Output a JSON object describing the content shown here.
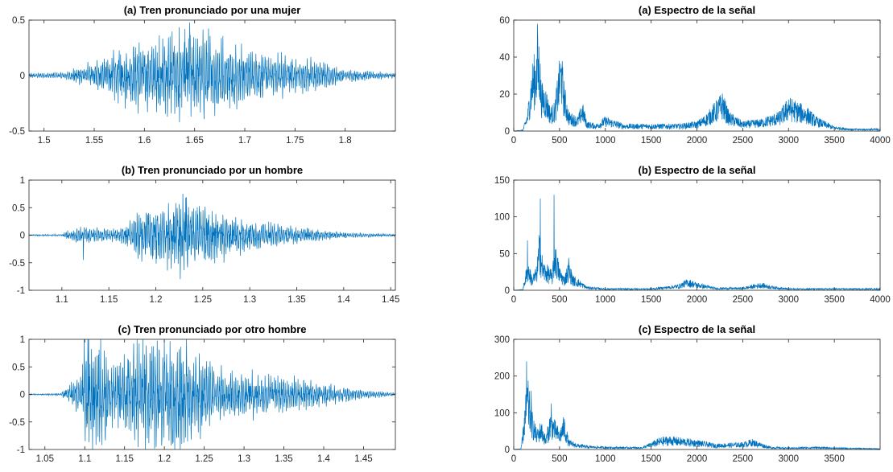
{
  "figure": {
    "line_color": "#0072bd",
    "axis_color": "#262626",
    "background": "#ffffff"
  },
  "chart_data": [
    {
      "id": "wave-a",
      "type": "line",
      "title": "(a) Tren pronunciado por una mujer",
      "xlim": [
        1.485,
        1.85
      ],
      "ylim": [
        -0.5,
        0.5
      ],
      "xticks": [
        1.5,
        1.55,
        1.6,
        1.65,
        1.7,
        1.75,
        1.8
      ],
      "xtick_labels": [
        "1.5",
        "1.55",
        "1.6",
        "1.65",
        "1.7",
        "1.75",
        "1.8"
      ],
      "yticks": [
        -0.5,
        0,
        0.5
      ],
      "ytick_labels": [
        "-0.5",
        "0",
        "0.5"
      ],
      "signal": {
        "kind": "waveform",
        "envelope_x": [
          1.485,
          1.52,
          1.55,
          1.58,
          1.6,
          1.63,
          1.65,
          1.68,
          1.7,
          1.73,
          1.76,
          1.8,
          1.85
        ],
        "envelope_y": [
          0.02,
          0.03,
          0.12,
          0.25,
          0.3,
          0.38,
          0.4,
          0.32,
          0.22,
          0.18,
          0.15,
          0.05,
          0.02
        ],
        "peaks": [
          {
            "x": 1.645,
            "y": 0.48
          },
          {
            "x": 1.635,
            "y": -0.42
          }
        ]
      }
    },
    {
      "id": "spec-a",
      "type": "line",
      "title": "(a) Espectro de la señal",
      "xlim": [
        0,
        4000
      ],
      "ylim": [
        0,
        60
      ],
      "xticks": [
        0,
        500,
        1000,
        1500,
        2000,
        2500,
        3000,
        3500,
        4000
      ],
      "xtick_labels": [
        "0",
        "500",
        "1000",
        "1500",
        "2000",
        "2500",
        "3000",
        "3500",
        "4000"
      ],
      "yticks": [
        0,
        20,
        40,
        60
      ],
      "ytick_labels": [
        "0",
        "20",
        "40",
        "60"
      ],
      "signal": {
        "kind": "spectrum",
        "x": [
          0,
          100,
          150,
          200,
          250,
          280,
          300,
          350,
          400,
          450,
          500,
          520,
          550,
          600,
          700,
          750,
          800,
          900,
          1000,
          1200,
          1500,
          1800,
          2000,
          2100,
          2200,
          2280,
          2350,
          2500,
          2700,
          2900,
          3000,
          3100,
          3200,
          3300,
          3500,
          3700,
          4000
        ],
        "y": [
          0,
          0.5,
          8,
          28,
          35,
          40,
          20,
          18,
          10,
          12,
          30,
          33,
          20,
          8,
          6,
          12,
          4,
          3,
          6,
          3,
          3,
          3,
          4,
          7,
          12,
          16,
          8,
          4,
          5,
          8,
          14,
          12,
          10,
          6,
          2,
          1,
          1
        ],
        "peaks": [
          {
            "x": 260,
            "y": 58
          },
          {
            "x": 520,
            "y": 34
          },
          {
            "x": 2280,
            "y": 18
          },
          {
            "x": 3000,
            "y": 17
          }
        ]
      }
    },
    {
      "id": "wave-b",
      "type": "line",
      "title": "(b) Tren pronunciado por un hombre",
      "xlim": [
        1.065,
        1.455
      ],
      "ylim": [
        -1,
        1
      ],
      "xticks": [
        1.1,
        1.15,
        1.2,
        1.25,
        1.3,
        1.35,
        1.4,
        1.45
      ],
      "xtick_labels": [
        "1.1",
        "1.15",
        "1.2",
        "1.25",
        "1.3",
        "1.35",
        "1.4",
        "1.45"
      ],
      "yticks": [
        -1,
        -0.5,
        0,
        0.5,
        1
      ],
      "ytick_labels": [
        "-1",
        "-0.5",
        "0",
        "0.5",
        "1"
      ],
      "signal": {
        "kind": "waveform",
        "envelope_x": [
          1.065,
          1.1,
          1.105,
          1.12,
          1.14,
          1.16,
          1.18,
          1.2,
          1.22,
          1.24,
          1.26,
          1.28,
          1.3,
          1.33,
          1.36,
          1.4,
          1.455
        ],
        "envelope_y": [
          0.01,
          0.02,
          0.08,
          0.15,
          0.12,
          0.1,
          0.35,
          0.55,
          0.62,
          0.6,
          0.5,
          0.35,
          0.25,
          0.2,
          0.12,
          0.05,
          0.02
        ],
        "peaks": [
          {
            "x": 1.232,
            "y": 0.68
          },
          {
            "x": 1.226,
            "y": -0.8
          },
          {
            "x": 1.123,
            "y": -0.45
          }
        ]
      }
    },
    {
      "id": "spec-b",
      "type": "line",
      "title": "(b) Espectro de la señal",
      "xlim": [
        0,
        4000
      ],
      "ylim": [
        0,
        150
      ],
      "xticks": [
        0,
        500,
        1000,
        1500,
        2000,
        2500,
        3000,
        3500,
        4000
      ],
      "xtick_labels": [
        "0",
        "500",
        "1000",
        "1500",
        "2000",
        "2500",
        "3000",
        "3500",
        "4000"
      ],
      "yticks": [
        0,
        50,
        100,
        150
      ],
      "ytick_labels": [
        "0",
        "50",
        "100",
        "150"
      ],
      "signal": {
        "kind": "spectrum",
        "x": [
          0,
          100,
          130,
          160,
          200,
          250,
          280,
          320,
          380,
          420,
          450,
          500,
          550,
          600,
          650,
          700,
          800,
          1000,
          1500,
          1800,
          1900,
          2000,
          2200,
          2500,
          2700,
          2800,
          3000,
          3500,
          4000
        ],
        "y": [
          0,
          1,
          20,
          30,
          15,
          25,
          60,
          30,
          25,
          20,
          50,
          25,
          15,
          30,
          15,
          12,
          4,
          2,
          2,
          6,
          12,
          8,
          3,
          3,
          8,
          5,
          2,
          2,
          2
        ],
        "peaks": [
          {
            "x": 150,
            "y": 68
          },
          {
            "x": 290,
            "y": 125
          },
          {
            "x": 440,
            "y": 130
          },
          {
            "x": 600,
            "y": 44
          }
        ]
      }
    },
    {
      "id": "wave-c",
      "type": "line",
      "title": "(c) Tren pronunciado por otro hombre",
      "xlim": [
        1.03,
        1.49
      ],
      "ylim": [
        -1,
        1
      ],
      "xticks": [
        1.05,
        1.1,
        1.15,
        1.2,
        1.25,
        1.3,
        1.35,
        1.4,
        1.45
      ],
      "xtick_labels": [
        "1.05",
        "1.1",
        "1.15",
        "1.2",
        "1.25",
        "1.3",
        "1.35",
        "1.4",
        "1.45"
      ],
      "yticks": [
        -1,
        -0.5,
        0,
        0.5,
        1
      ],
      "ytick_labels": [
        "-1",
        "-0.5",
        "0",
        "0.5",
        "1"
      ],
      "signal": {
        "kind": "waveform",
        "envelope_x": [
          1.03,
          1.07,
          1.08,
          1.095,
          1.1,
          1.12,
          1.14,
          1.16,
          1.18,
          1.2,
          1.22,
          1.25,
          1.28,
          1.32,
          1.36,
          1.4,
          1.45,
          1.49
        ],
        "envelope_y": [
          0.01,
          0.02,
          0.15,
          0.35,
          0.9,
          0.85,
          0.5,
          0.9,
          1.0,
          1.0,
          0.95,
          0.6,
          0.45,
          0.35,
          0.3,
          0.2,
          0.08,
          0.03
        ],
        "peaks": [
          {
            "x": 1.105,
            "y": 1.0
          },
          {
            "x": 1.11,
            "y": -1.0
          },
          {
            "x": 1.2,
            "y": 1.0
          },
          {
            "x": 1.22,
            "y": -1.0
          }
        ]
      }
    },
    {
      "id": "spec-c",
      "type": "line",
      "title": "(c) Espectro de la señal",
      "xlim": [
        0,
        4000
      ],
      "ylim": [
        0,
        300
      ],
      "xticks": [
        0,
        500,
        1000,
        1500,
        2000,
        2500,
        3000,
        3500
      ],
      "xtick_labels": [
        "0",
        "500",
        "1000",
        "1500",
        "2000",
        "2500",
        "3000",
        "3500"
      ],
      "yticks": [
        0,
        100,
        200,
        300
      ],
      "ytick_labels": [
        "0",
        "100",
        "200",
        "300"
      ],
      "signal": {
        "kind": "spectrum",
        "x": [
          0,
          80,
          120,
          150,
          200,
          250,
          300,
          350,
          400,
          450,
          500,
          550,
          600,
          700,
          800,
          1000,
          1400,
          1600,
          1700,
          1800,
          2000,
          2200,
          2500,
          2600,
          2800,
          3000,
          3300,
          3500,
          4000
        ],
        "y": [
          0,
          2,
          90,
          150,
          80,
          40,
          60,
          25,
          80,
          60,
          40,
          70,
          20,
          12,
          8,
          6,
          5,
          25,
          28,
          25,
          20,
          12,
          15,
          22,
          6,
          4,
          6,
          4,
          2
        ],
        "peaks": [
          {
            "x": 140,
            "y": 240
          },
          {
            "x": 190,
            "y": 160
          },
          {
            "x": 410,
            "y": 125
          }
        ]
      }
    }
  ]
}
